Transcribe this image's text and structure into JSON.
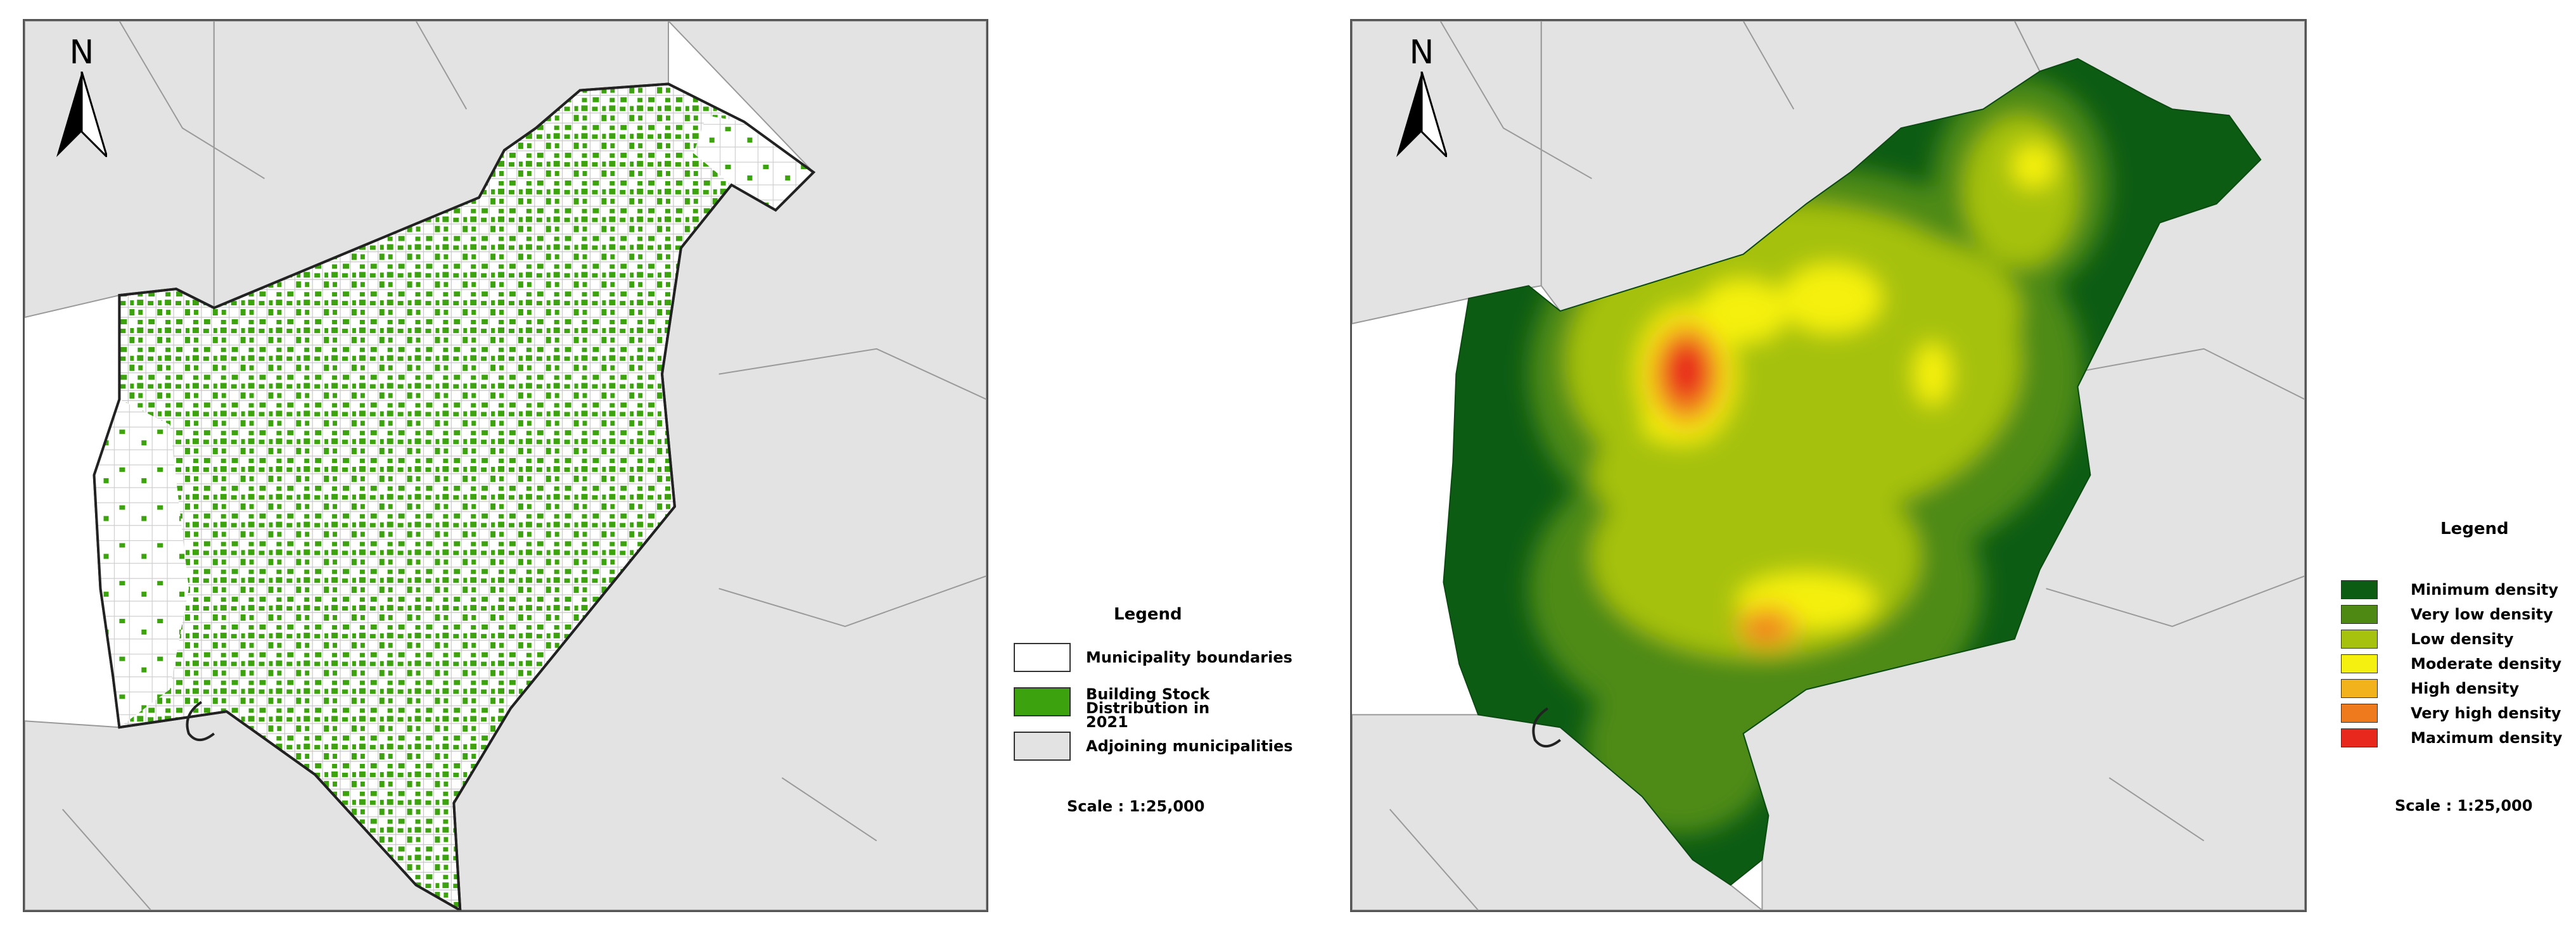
{
  "left_map": {
    "north_label": "N",
    "legend": {
      "title": "Legend",
      "items": [
        {
          "label": "Municipality boundaries",
          "color": "#ffffff"
        },
        {
          "label": "Building Stock Distribution in 2021",
          "color": "#3ca30f"
        },
        {
          "label": "Adjoining municipalities",
          "color": "#e3e3e3"
        }
      ]
    },
    "scale": "Scale : 1:25,000"
  },
  "right_map": {
    "north_label": "N",
    "legend": {
      "title": "Legend",
      "items": [
        {
          "label": "Minimum density",
          "color": "#0d5c14"
        },
        {
          "label": "Very low density",
          "color": "#4e8a13"
        },
        {
          "label": "Low density",
          "color": "#a6c10e"
        },
        {
          "label": "Moderate density",
          "color": "#f5f00f"
        },
        {
          "label": "High density",
          "color": "#f2b21b"
        },
        {
          "label": "Very high density",
          "color": "#ef7a1d"
        },
        {
          "label": "Maximum density",
          "color": "#e8281c"
        }
      ]
    },
    "scale": "Scale : 1:25,000"
  }
}
